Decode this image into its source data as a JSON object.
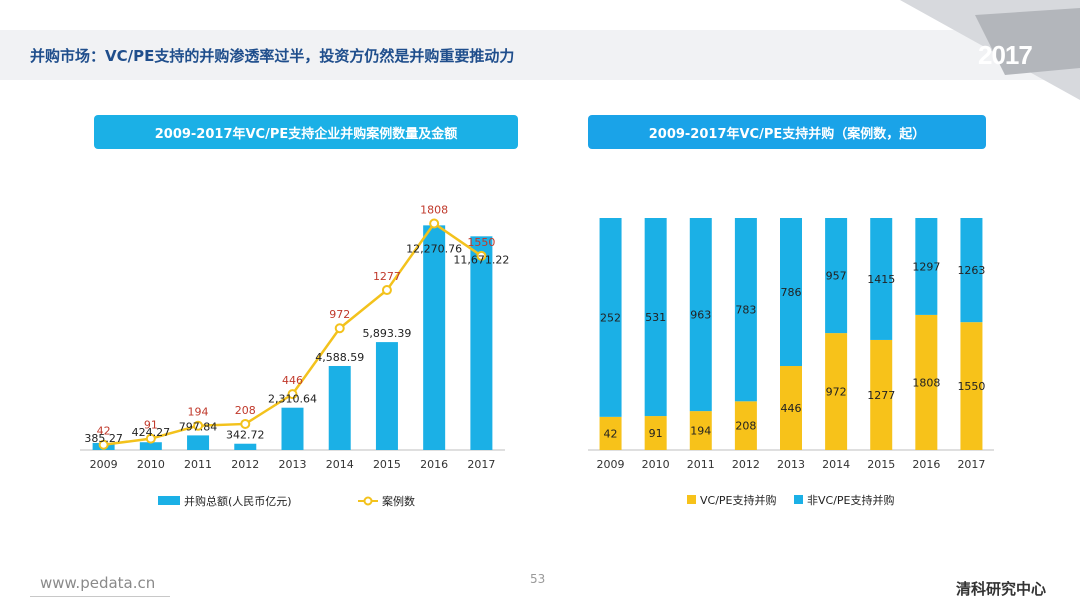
{
  "header": {
    "title": "并购市场：VC/PE支持的并购渗透率过半，投资方仍然是并购重要推动力",
    "year_badge": "2017"
  },
  "left_panel": {
    "title": "2009-2017年VC/PE支持企业并购案例数量及金额"
  },
  "right_panel": {
    "title": "2009-2017年VC/PE支持并购（案例数，起）"
  },
  "footer": {
    "url": "www.pedata.cn",
    "page": "53",
    "brand": "清科研究中心"
  },
  "colors": {
    "bar_blue": "#1bb0e6",
    "line_yellow": "#f3c21c",
    "yellow_bar": "#f7c21a",
    "case_red": "#c0392b"
  },
  "chart_data": [
    {
      "type": "bar",
      "title": "2009-2017年VC/PE支持企业并购案例数量及金额",
      "categories": [
        "2009",
        "2010",
        "2011",
        "2012",
        "2013",
        "2014",
        "2015",
        "2016",
        "2017"
      ],
      "series": [
        {
          "name": "并购总额(人民币亿元)",
          "kind": "bar",
          "values": [
            385.27,
            424.27,
            797.84,
            342.72,
            2310.64,
            4588.59,
            5893.39,
            12270.76,
            11671.22
          ],
          "labels": [
            "385.27",
            "424.27",
            "797.84",
            "342.72",
            "2,310.64",
            "4,588.59",
            "5,893.39",
            "12,270.76",
            "11,671.22"
          ]
        },
        {
          "name": "案例数",
          "kind": "line",
          "values": [
            42,
            91,
            194,
            208,
            446,
            972,
            1277,
            1808,
            1550
          ],
          "labels": [
            "42",
            "91",
            "194",
            "208",
            "446",
            "972",
            "1277",
            "1808",
            "1550"
          ]
        }
      ],
      "legend": [
        "并购总额(人民币亿元)",
        "案例数"
      ],
      "ylim_bar": [
        0,
        13000
      ],
      "ylim_line": [
        0,
        1900
      ]
    },
    {
      "type": "bar",
      "stacked": true,
      "title": "2009-2017年VC/PE支持并购（案例数，起）",
      "categories": [
        "2009",
        "2010",
        "2011",
        "2012",
        "2013",
        "2014",
        "2015",
        "2016",
        "2017"
      ],
      "series": [
        {
          "name": "VC/PE支持并购",
          "values": [
            42,
            91,
            194,
            208,
            446,
            972,
            1277,
            1808,
            1550
          ],
          "labels": [
            "42",
            "91",
            "194",
            "208",
            "446",
            "972",
            "1277",
            "1808",
            "1550"
          ]
        },
        {
          "name": "非VC/PE支持并购",
          "values": [
            252,
            531,
            963,
            783,
            786,
            957,
            1415,
            1297,
            1263
          ],
          "labels": [
            "252",
            "531",
            "963",
            "783",
            "786",
            "957",
            "1415",
            "1297",
            "1263"
          ]
        }
      ],
      "legend": [
        "VC/PE支持并购",
        "非VC/PE支持并购"
      ],
      "normalized": true
    }
  ]
}
